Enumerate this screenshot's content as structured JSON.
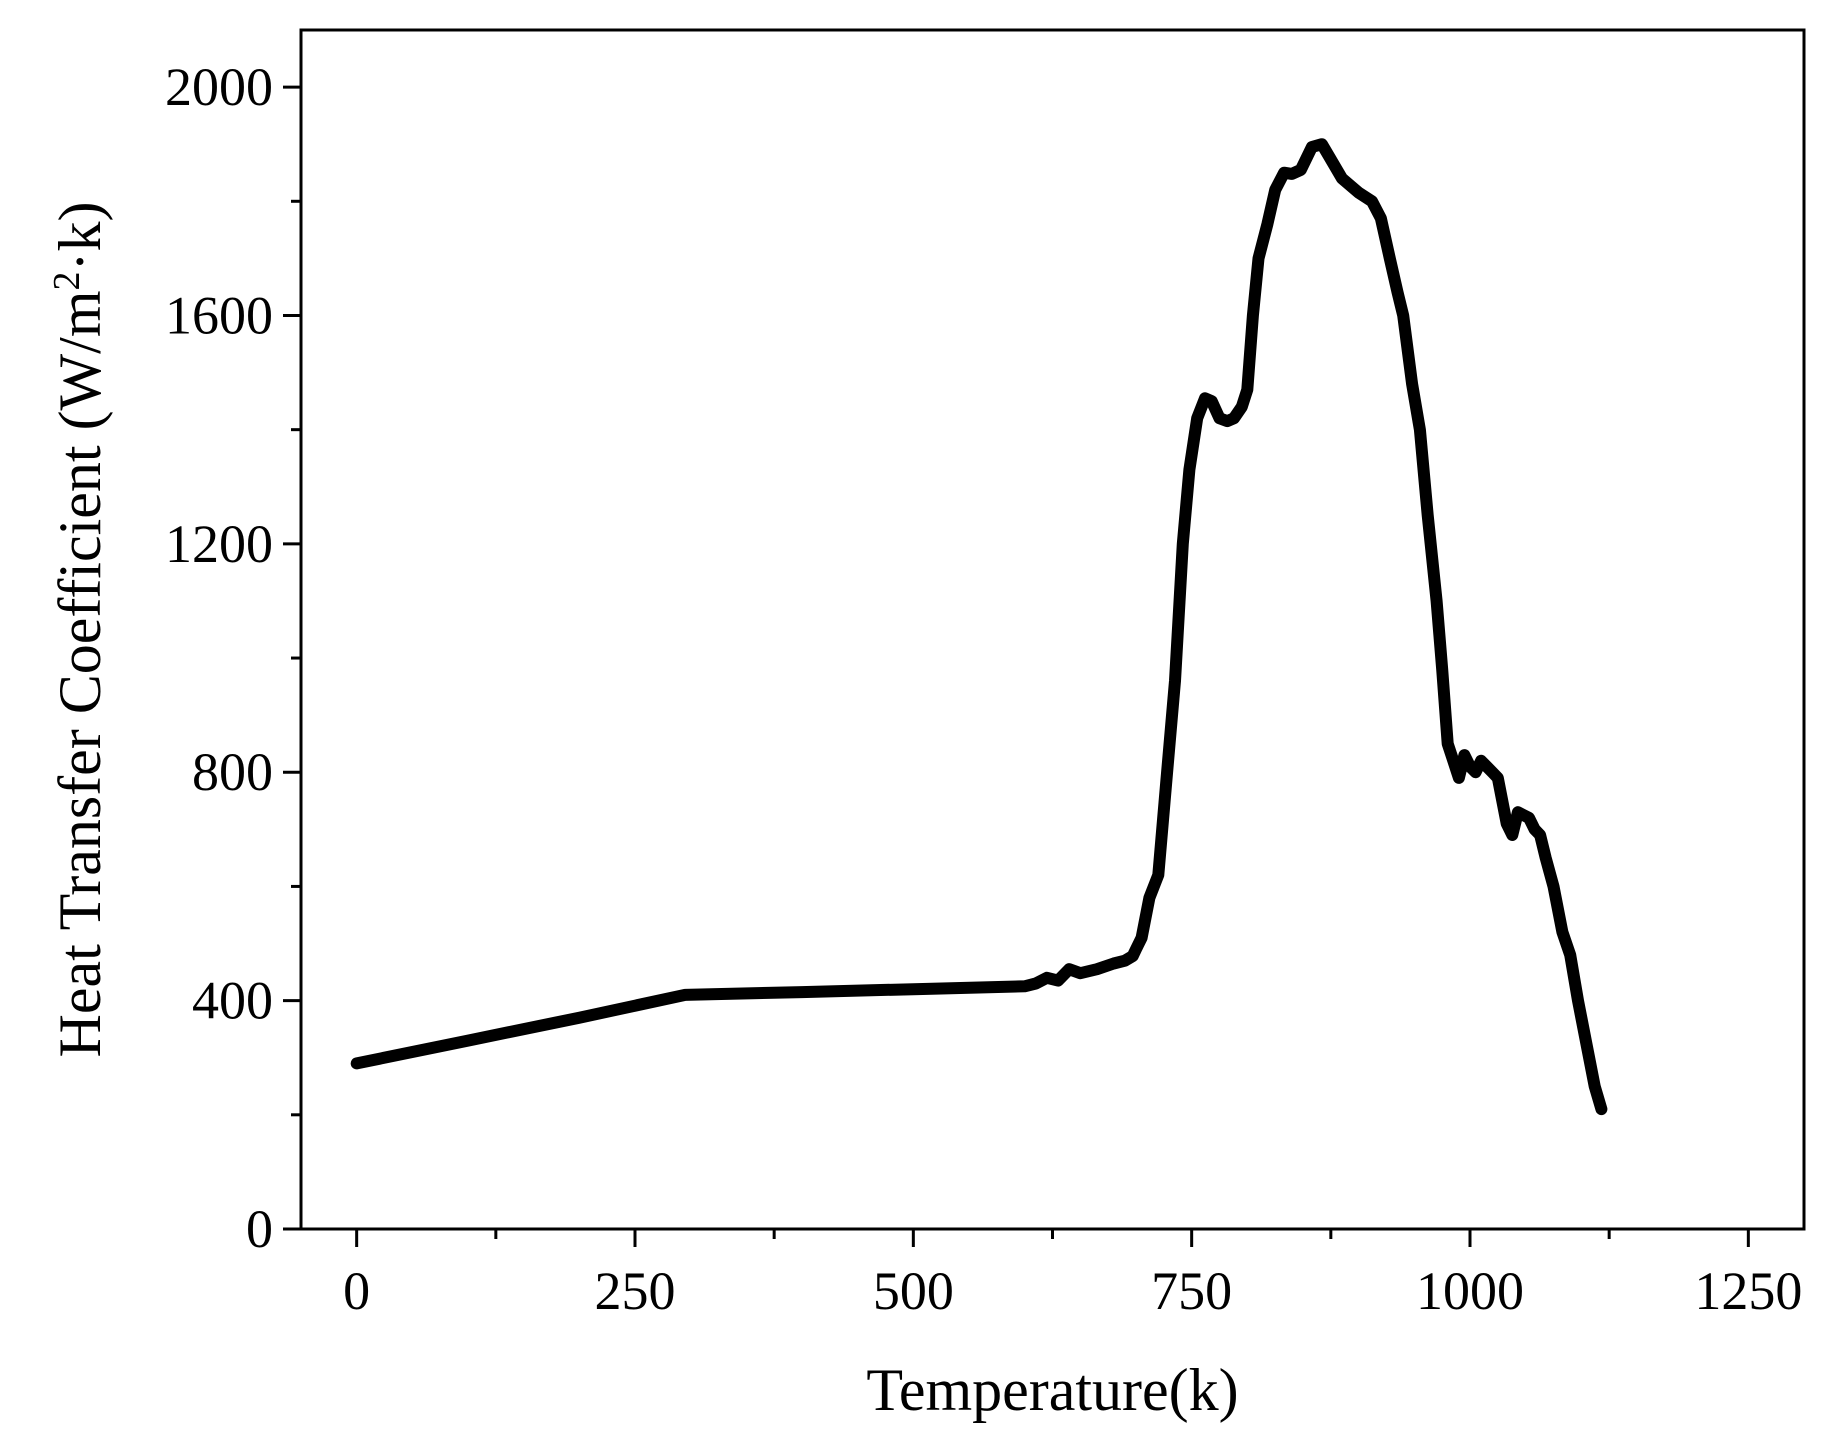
{
  "chart_data": {
    "type": "line",
    "title": "",
    "xlabel": "Temperature(k)",
    "ylabel": {
      "prefix": "Heat Transfer Coefficient (W/m",
      "superscript": "2",
      "suffix": "·k)"
    },
    "xlim": [
      -50,
      1300
    ],
    "ylim": [
      0,
      2100
    ],
    "xticks": [
      0,
      250,
      500,
      750,
      1000,
      1250
    ],
    "xtick_labels": [
      "0",
      "250",
      "500",
      "750",
      "1000",
      "1250"
    ],
    "xminor": [
      125,
      375,
      625,
      875,
      1125
    ],
    "yticks": [
      0,
      400,
      800,
      1200,
      1600,
      2000
    ],
    "ytick_labels": [
      "0",
      "400",
      "800",
      "1200",
      "1600",
      "2000"
    ],
    "yminor": [
      200,
      600,
      1000,
      1400,
      1800
    ],
    "grid": false,
    "legend": "none",
    "line_color": "#000000",
    "series": [
      {
        "x": [
          0,
          100,
          200,
          295,
          400,
          500,
          600,
          610,
          620,
          630,
          640,
          650,
          665,
          680,
          690,
          697,
          700,
          705,
          712,
          720,
          727,
          735,
          742,
          748,
          755,
          762,
          768,
          775,
          782,
          788,
          795,
          800,
          805,
          810,
          818,
          825,
          833,
          840,
          848,
          858,
          867,
          873,
          885,
          900,
          912,
          920,
          928,
          935,
          940,
          948,
          955,
          962,
          970,
          975,
          980,
          985,
          990,
          995,
          1000,
          1005,
          1010,
          1015,
          1020,
          1025,
          1033,
          1038,
          1043,
          1048,
          1053,
          1058,
          1063,
          1068,
          1075,
          1083,
          1090,
          1097,
          1105,
          1112,
          1118
        ],
        "y": [
          290,
          330,
          370,
          410,
          415,
          420,
          425,
          430,
          440,
          435,
          455,
          448,
          455,
          465,
          470,
          478,
          490,
          510,
          580,
          620,
          780,
          960,
          1200,
          1330,
          1420,
          1455,
          1450,
          1420,
          1415,
          1420,
          1440,
          1470,
          1600,
          1700,
          1760,
          1820,
          1850,
          1848,
          1855,
          1895,
          1900,
          1880,
          1840,
          1815,
          1800,
          1770,
          1700,
          1640,
          1600,
          1480,
          1400,
          1250,
          1100,
          980,
          850,
          820,
          790,
          830,
          810,
          800,
          820,
          810,
          800,
          790,
          710,
          690,
          730,
          725,
          720,
          700,
          690,
          650,
          600,
          520,
          480,
          400,
          320,
          250,
          210
        ]
      }
    ]
  }
}
